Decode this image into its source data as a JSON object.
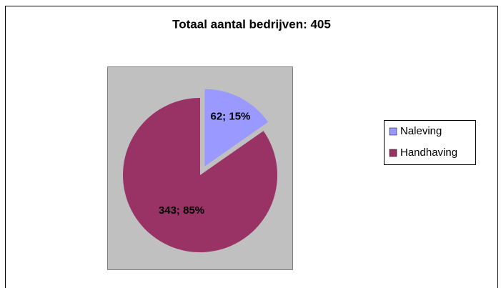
{
  "chart_data": {
    "type": "pie",
    "title": "Totaal aantal bedrijven: 405",
    "categories": [
      "Naleving",
      "Handhaving"
    ],
    "values": [
      62,
      343
    ],
    "value_labels": [
      "62; 15%",
      "343; 85%"
    ],
    "colors": [
      "#9999ff",
      "#993366"
    ],
    "exploded": [
      true,
      false
    ],
    "legend": "right"
  }
}
